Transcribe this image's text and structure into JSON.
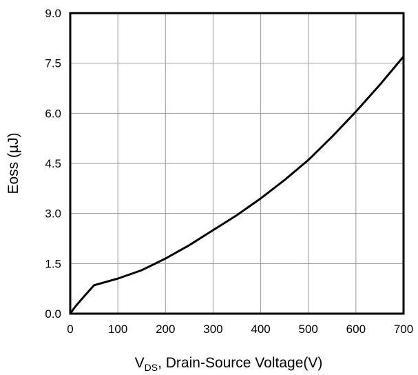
{
  "chart_data": {
    "type": "line",
    "xlabel_main": "V",
    "xlabel_sub": "DS",
    "xlabel_rest": ", Drain-Source Voltage(V)",
    "ylabel": "Eoss (µJ)",
    "xlim": [
      0,
      700
    ],
    "ylim": [
      0,
      9.0
    ],
    "x_ticks": [
      "0",
      "100",
      "200",
      "300",
      "400",
      "500",
      "600",
      "700"
    ],
    "y_ticks": [
      "0.0",
      "1.5",
      "3.0",
      "4.5",
      "6.0",
      "7.5",
      "9.0"
    ],
    "grid": true,
    "series": [
      {
        "x": [
          0,
          10,
          25,
          50,
          75,
          100,
          150,
          200,
          250,
          300,
          350,
          400,
          450,
          500,
          550,
          600,
          650,
          700
        ],
        "y": [
          0.0,
          0.2,
          0.45,
          0.85,
          0.95,
          1.05,
          1.3,
          1.65,
          2.05,
          2.5,
          2.95,
          3.45,
          4.0,
          4.6,
          5.3,
          6.05,
          6.85,
          7.7
        ],
        "color": "#000000"
      }
    ]
  }
}
